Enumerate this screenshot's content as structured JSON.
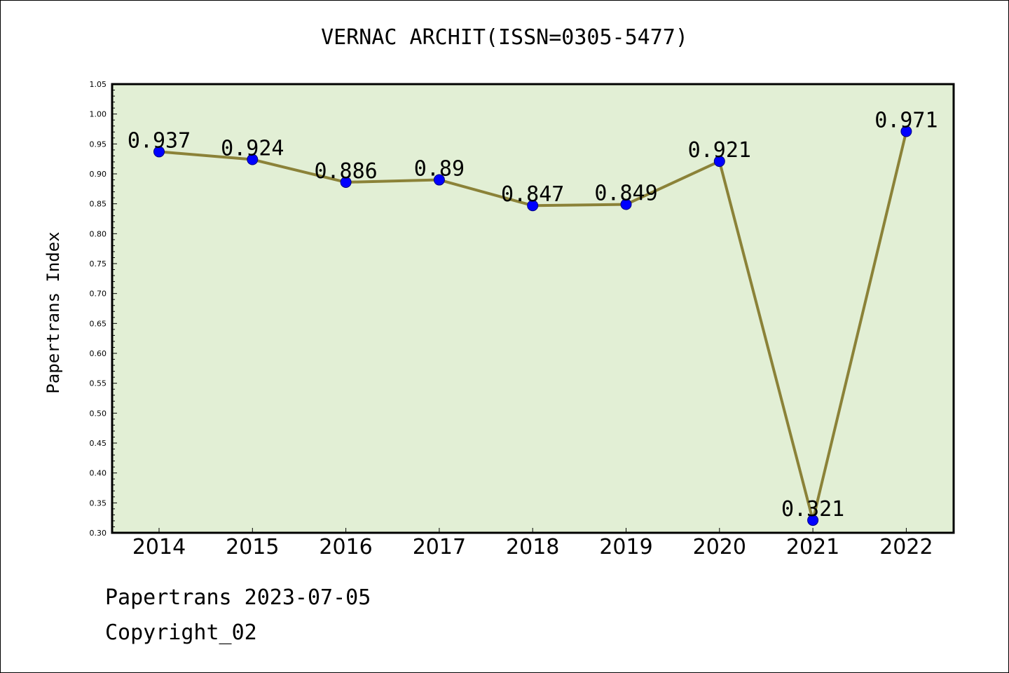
{
  "chart_data": {
    "type": "line",
    "title": "VERNAC ARCHIT(ISSN=0305-5477)",
    "ylabel": "Papertrans Index",
    "xlabel": "",
    "categories": [
      "2014",
      "2015",
      "2016",
      "2017",
      "2018",
      "2019",
      "2020",
      "2021",
      "2022"
    ],
    "series": [
      {
        "values": [
          0.937,
          0.924,
          0.886,
          0.89,
          0.847,
          0.849,
          0.921,
          0.321,
          0.971
        ],
        "labels": [
          "0.937",
          "0.924",
          "0.886",
          "0.89",
          "0.847",
          "0.849",
          "0.921",
          "0.321",
          "0.971"
        ]
      }
    ],
    "ylim": [
      0.3,
      1.05
    ],
    "yticks": [
      "0.30",
      "0.35",
      "0.40",
      "0.45",
      "0.50",
      "0.55",
      "0.60",
      "0.65",
      "0.70",
      "0.75",
      "0.80",
      "0.85",
      "0.90",
      "0.95",
      "1.00",
      "1.05"
    ],
    "grid": false,
    "colors": {
      "plot_background": "#e2efd5",
      "line": "#8b8238",
      "marker": "#0000ff"
    }
  },
  "footer": {
    "date_line": "Papertrans 2023-07-05",
    "copyright": "Copyright_02"
  }
}
